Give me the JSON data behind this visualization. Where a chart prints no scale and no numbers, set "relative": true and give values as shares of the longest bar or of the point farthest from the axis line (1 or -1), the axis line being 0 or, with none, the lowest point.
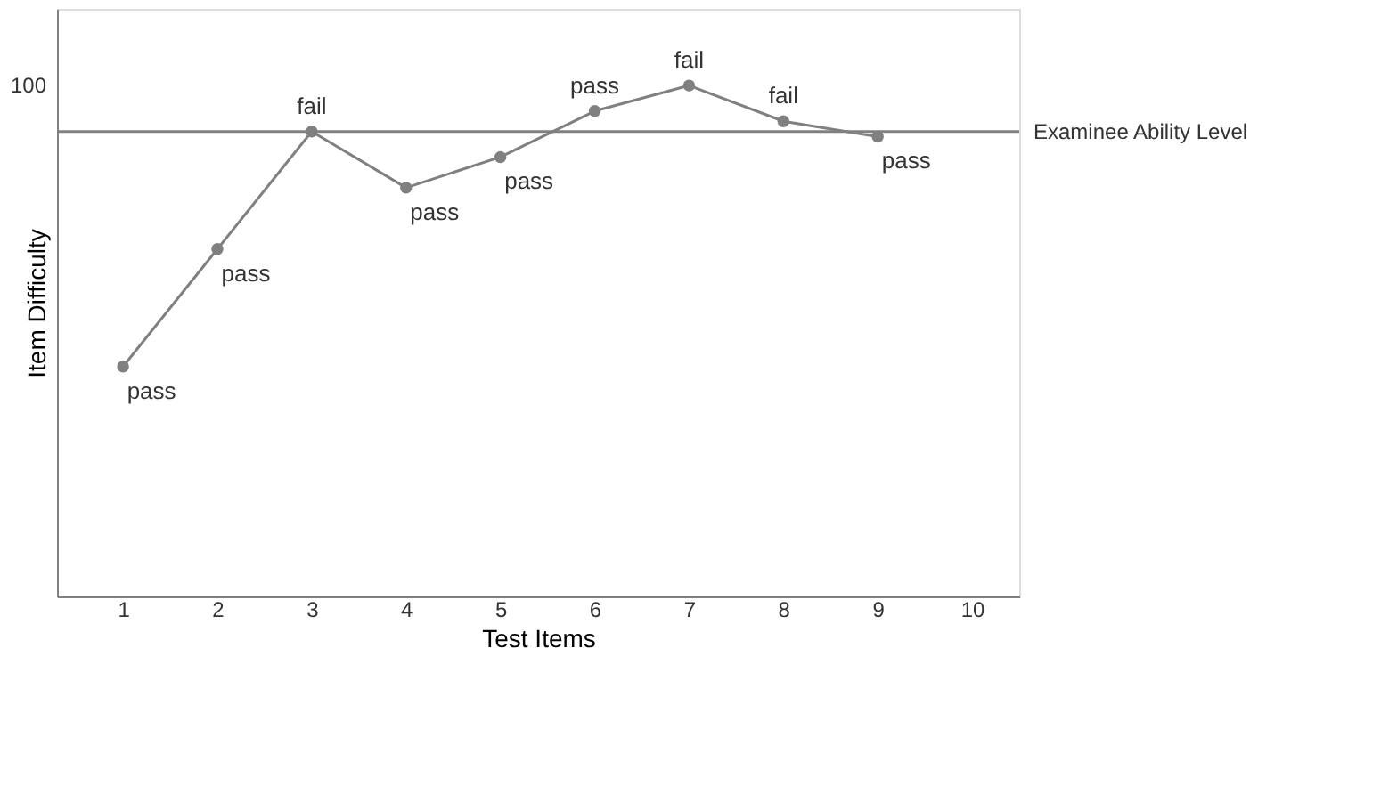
{
  "chart_data": {
    "type": "line",
    "relative": true,
    "xlabel": "Test Items",
    "ylabel": "Item Difficulty",
    "categories": [
      "1",
      "2",
      "3",
      "4",
      "5",
      "6",
      "7",
      "8",
      "9",
      "10"
    ],
    "series": [
      {
        "color": "#808080",
        "values": [
          0.45,
          0.68,
          0.91,
          0.8,
          0.86,
          0.95,
          1.0,
          0.93,
          0.9,
          null
        ]
      }
    ],
    "marker": "circle",
    "line_style": "solid",
    "grid": false,
    "ref_lines": [
      {
        "axis": "y",
        "value": 0.91,
        "label": "Examinee Ability Level",
        "color": "#808080"
      }
    ],
    "annotations": [
      "100",
      {
        "text": "pass",
        "x": "1",
        "y": 0.45
      },
      {
        "text": "pass",
        "x": "2",
        "y": 0.68
      },
      {
        "text": "fail",
        "x": "3",
        "y": 0.91
      },
      {
        "text": "pass",
        "x": "4",
        "y": 0.8
      },
      {
        "text": "pass",
        "x": "5",
        "y": 0.86
      },
      {
        "text": "pass",
        "x": "6",
        "y": 0.95
      },
      {
        "text": "fail",
        "x": "7",
        "y": 1.0
      },
      {
        "text": "fail",
        "x": "8",
        "y": 0.93
      },
      {
        "text": "pass",
        "x": "9",
        "y": 0.9
      }
    ]
  }
}
